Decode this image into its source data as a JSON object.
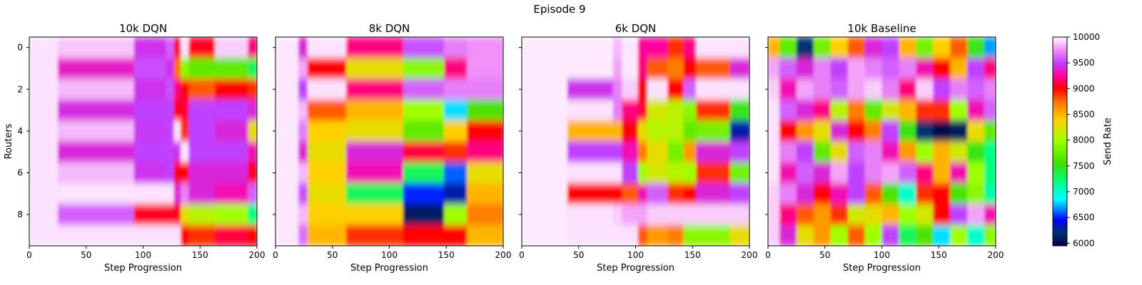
{
  "figure": {
    "suptitle": "Episode 9"
  },
  "chart_data": {
    "type": "heatmap",
    "shared_y_label": "Routers",
    "shared_x_label": "Step Progression",
    "x_ticks": [
      0,
      50,
      100,
      150,
      200
    ],
    "y_ticks": [
      0,
      2,
      4,
      6,
      8
    ],
    "x_range": [
      0,
      200
    ],
    "y_range": [
      -0.5,
      9.5
    ],
    "grid": false,
    "colorbar": {
      "label": "Send Rate",
      "range": [
        5950,
        10000
      ],
      "ticks": [
        6000,
        6500,
        7000,
        7500,
        8000,
        8500,
        9000,
        9500,
        10000
      ],
      "colormap_stops": [
        {
          "v": 5950,
          "c": "#000044"
        },
        {
          "v": 6200,
          "c": "#003070"
        },
        {
          "v": 6450,
          "c": "#0000ff"
        },
        {
          "v": 6850,
          "c": "#00ffff"
        },
        {
          "v": 7200,
          "c": "#00ff80"
        },
        {
          "v": 7550,
          "c": "#40e000"
        },
        {
          "v": 8000,
          "c": "#a0ff00"
        },
        {
          "v": 8400,
          "c": "#ffd000"
        },
        {
          "v": 8750,
          "c": "#ff7000"
        },
        {
          "v": 9000,
          "c": "#ff0000"
        },
        {
          "v": 9250,
          "c": "#ff00a0"
        },
        {
          "v": 9500,
          "c": "#c040ff"
        },
        {
          "v": 9750,
          "c": "#f090f8"
        },
        {
          "v": 10000,
          "c": "#fff6ff"
        }
      ]
    },
    "panels": [
      {
        "title": "10k DQN",
        "x_breaks": [
          0,
          25,
          92,
          120,
          127,
          133,
          140,
          163,
          192,
          200
        ],
        "values": [
          [
            9950,
            9880,
            9450,
            9600,
            9100,
            9950,
            9050,
            9900,
            9200
          ],
          [
            9950,
            9350,
            9550,
            9450,
            8750,
            7900,
            7700,
            7700,
            7300
          ],
          [
            9950,
            9850,
            9450,
            9550,
            9200,
            9000,
            8800,
            9000,
            8900
          ],
          [
            9950,
            9420,
            9500,
            9500,
            9000,
            9100,
            9500,
            9500,
            9400
          ],
          [
            9950,
            9850,
            9480,
            9500,
            9950,
            8900,
            9500,
            9400,
            8300
          ],
          [
            9950,
            9400,
            9500,
            9500,
            9450,
            9950,
            9500,
            9500,
            9300
          ],
          [
            9950,
            9850,
            9450,
            9500,
            9000,
            9000,
            9400,
            9400,
            9050
          ],
          [
            9950,
            9950,
            9950,
            9950,
            9400,
            9700,
            9400,
            9300,
            9600
          ],
          [
            9950,
            9600,
            9050,
            9050,
            9050,
            8300,
            8100,
            8000,
            7200
          ],
          [
            9950,
            9950,
            9950,
            9950,
            9950,
            9000,
            8900,
            9100,
            9000
          ]
        ]
      },
      {
        "title": "8k DQN",
        "x_breaks": [
          0,
          20,
          28,
          62,
          112,
          148,
          168,
          200
        ],
        "values": [
          [
            9960,
            9400,
            9950,
            9200,
            9550,
            9700,
            9750
          ],
          [
            9960,
            9800,
            9000,
            8300,
            7900,
            9200,
            9750
          ],
          [
            9960,
            9500,
            9950,
            9200,
            9600,
            9700,
            9700
          ],
          [
            9960,
            9850,
            8800,
            8500,
            8000,
            6800,
            7600
          ],
          [
            9960,
            9700,
            8400,
            8300,
            7700,
            8400,
            9000
          ],
          [
            9960,
            9400,
            8300,
            9400,
            9100,
            8900,
            9200
          ],
          [
            9960,
            9850,
            8400,
            9300,
            7300,
            6600,
            8300
          ],
          [
            9960,
            9550,
            8300,
            7300,
            6500,
            6300,
            8500
          ],
          [
            9960,
            9850,
            8400,
            8400,
            6100,
            8000,
            8700
          ],
          [
            9960,
            9650,
            8500,
            8900,
            9000,
            9000,
            8500
          ]
        ]
      },
      {
        "title": "6k DQN",
        "x_breaks": [
          0,
          40,
          80,
          88,
          102,
          110,
          128,
          142,
          153,
          183,
          200
        ],
        "values": [
          [
            9970,
            9970,
            9850,
            9960,
            9250,
            9250,
            8900,
            9200,
            9950,
            9950
          ],
          [
            9970,
            9970,
            9800,
            9960,
            9200,
            8800,
            8700,
            9000,
            8800,
            9400
          ],
          [
            9970,
            9450,
            9700,
            9900,
            9000,
            9950,
            9000,
            9600,
            9950,
            9950
          ],
          [
            9970,
            9950,
            9700,
            9200,
            9100,
            8200,
            8100,
            7900,
            8900,
            7500
          ],
          [
            9970,
            8500,
            8500,
            9000,
            8300,
            8100,
            8100,
            7700,
            7800,
            6300
          ],
          [
            9970,
            9500,
            9500,
            9300,
            8700,
            8300,
            7800,
            8600,
            9400,
            9500
          ],
          [
            9970,
            9950,
            9950,
            9500,
            8000,
            8200,
            8100,
            8000,
            8900,
            7800
          ],
          [
            9970,
            9000,
            9000,
            8800,
            9300,
            9600,
            8900,
            9000,
            9400,
            9500
          ],
          [
            9970,
            9950,
            9900,
            9800,
            9800,
            9900,
            9900,
            9900,
            9900,
            9900
          ],
          [
            9970,
            9950,
            9950,
            9950,
            8800,
            8600,
            8700,
            7900,
            7900,
            8300
          ]
        ]
      },
      {
        "title": "10k Baseline",
        "x_breaks": [
          0,
          10,
          25,
          40,
          55,
          70,
          85,
          100,
          115,
          130,
          145,
          160,
          175,
          190,
          200
        ],
        "values": [
          [
            8500,
            7700,
            6200,
            7800,
            8400,
            8800,
            9400,
            9500,
            8500,
            7800,
            8400,
            8800,
            7500,
            6700
          ],
          [
            9800,
            9600,
            9400,
            9700,
            9500,
            9800,
            9700,
            9600,
            9700,
            9300,
            9000,
            8500,
            9500,
            9200
          ],
          [
            9900,
            9300,
            9800,
            9700,
            9600,
            9800,
            9900,
            9700,
            9200,
            9900,
            9500,
            9700,
            9600,
            9700
          ],
          [
            9950,
            9600,
            9400,
            9200,
            8100,
            8700,
            7700,
            8200,
            8500,
            8900,
            8900,
            8000,
            9300,
            9600
          ],
          [
            9950,
            9000,
            8600,
            8300,
            9400,
            9000,
            8700,
            9500,
            7500,
            6200,
            6000,
            6100,
            8300,
            7700
          ],
          [
            9950,
            9700,
            9500,
            7700,
            8300,
            9600,
            9700,
            9300,
            8600,
            8000,
            8500,
            8200,
            7500,
            7200
          ],
          [
            9950,
            9300,
            9600,
            9400,
            9800,
            9500,
            9700,
            9800,
            9600,
            9200,
            8500,
            9300,
            8000,
            7200
          ],
          [
            9900,
            9700,
            9400,
            9000,
            9300,
            9500,
            8800,
            7600,
            7000,
            8900,
            9000,
            7600,
            7900,
            7100
          ],
          [
            9900,
            9200,
            8800,
            8600,
            8900,
            8200,
            8300,
            8500,
            8000,
            8200,
            9000,
            9500,
            9800,
            9300
          ],
          [
            9900,
            9400,
            8300,
            8600,
            8000,
            8800,
            8000,
            9500,
            7300,
            7600,
            6800,
            8000,
            7000,
            7900
          ]
        ]
      }
    ]
  }
}
